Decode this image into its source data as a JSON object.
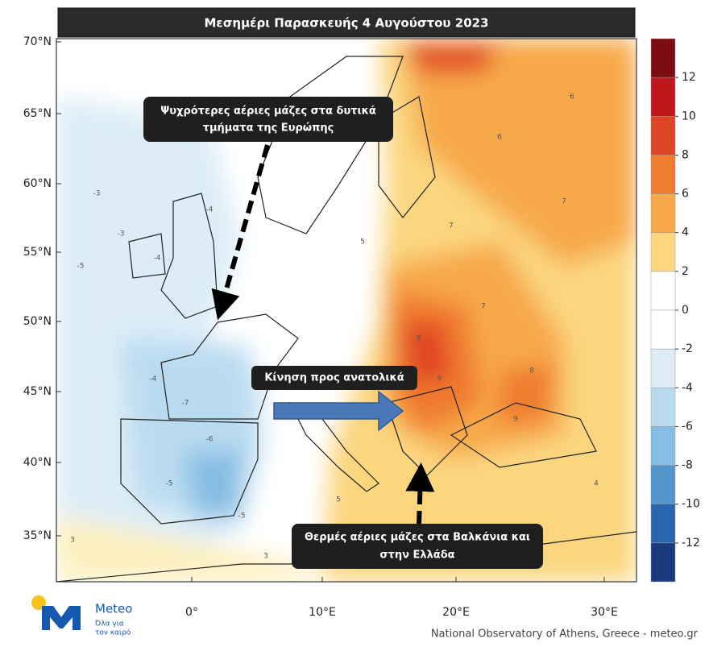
{
  "title": "Μεσημέρι Παρασκευής 4 Αυγούστου 2023",
  "lat_labels": [
    "70°N",
    "65°N",
    "60°N",
    "55°N",
    "50°N",
    "45°N",
    "40°N",
    "35°N"
  ],
  "lon_labels": [
    "0°",
    "10°E",
    "20°E",
    "30°E"
  ],
  "colorbar": {
    "ticks": [
      12,
      10,
      8,
      6,
      4,
      2,
      0,
      -2,
      -4,
      -6,
      -8,
      -10,
      -12
    ],
    "colors": [
      "#7b0c12",
      "#c0171e",
      "#e04427",
      "#f07c2f",
      "#f7a94a",
      "#fbd67f",
      "#ffffff",
      "#ffffff",
      "#dcedf7",
      "#b9dbf0",
      "#86bde3",
      "#5495cc",
      "#2a66ae",
      "#1b3a7e"
    ]
  },
  "annotations": [
    {
      "lines": [
        "Ψυχρότερες αέριες μάζες στα δυτικά",
        "τμήματα της Ευρώπης"
      ]
    },
    {
      "lines": [
        "Κίνηση προς ανατολικά"
      ]
    },
    {
      "lines": [
        "Θερμές αέριες μάζες στα Βαλκάνια και",
        "στην Ελλάδα"
      ]
    }
  ],
  "map_labels": [
    "-3",
    "-4",
    "-3",
    "-4",
    "-5",
    "-7",
    "-6",
    "-5",
    "-4",
    "-5",
    "7",
    "8",
    "9",
    "9",
    "7",
    "6",
    "5",
    "3",
    "3",
    "7",
    "8",
    "6",
    "5",
    "4"
  ],
  "logo": {
    "name": "Meteo",
    "tagline": [
      "Όλα για",
      "τον καιρό"
    ]
  },
  "footer": "National Observatory of Athens, Greece - meteo.gr"
}
